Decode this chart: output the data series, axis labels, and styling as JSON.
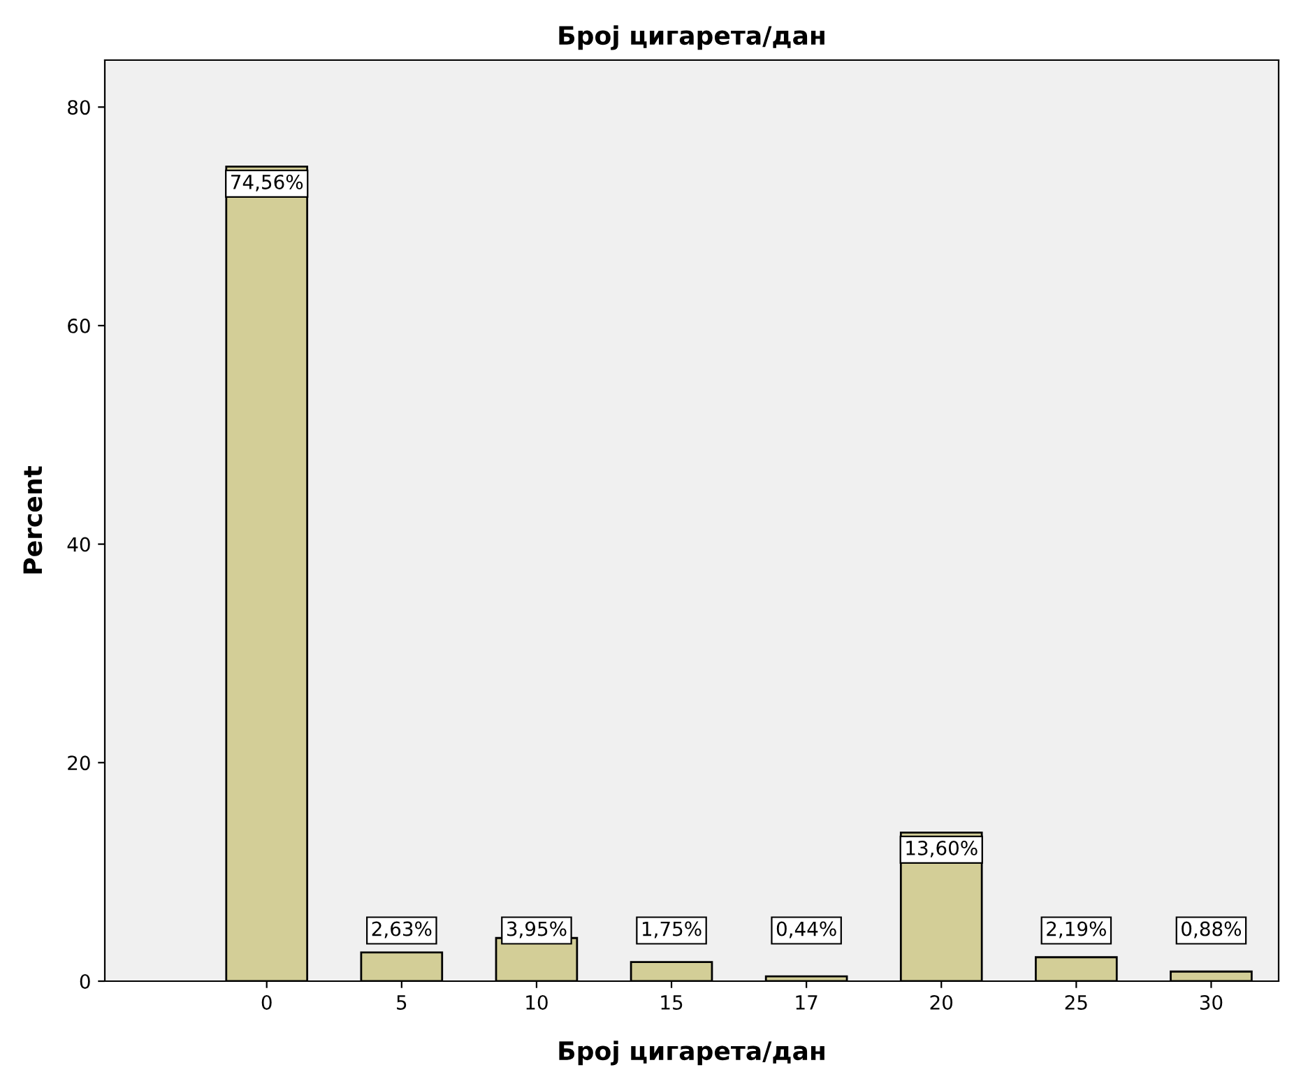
{
  "chart_data": {
    "type": "bar",
    "title": "Број цигарета/дан",
    "xlabel": "Број цигарета/дан",
    "ylabel": "Percent",
    "categories": [
      "0",
      "5",
      "10",
      "15",
      "17",
      "20",
      "25",
      "30"
    ],
    "values": [
      74.56,
      2.63,
      3.95,
      1.75,
      0.44,
      13.6,
      2.19,
      0.88
    ],
    "value_labels": [
      "74,56%",
      "2,63%",
      "3,95%",
      "1,75%",
      "0,44%",
      "13,60%",
      "2,19%",
      "0,88%"
    ],
    "color": "#d3ce97",
    "ylim": [
      0,
      84.3
    ],
    "yticks": [
      0,
      20,
      40,
      60,
      80
    ],
    "grid": false,
    "legend": false
  }
}
